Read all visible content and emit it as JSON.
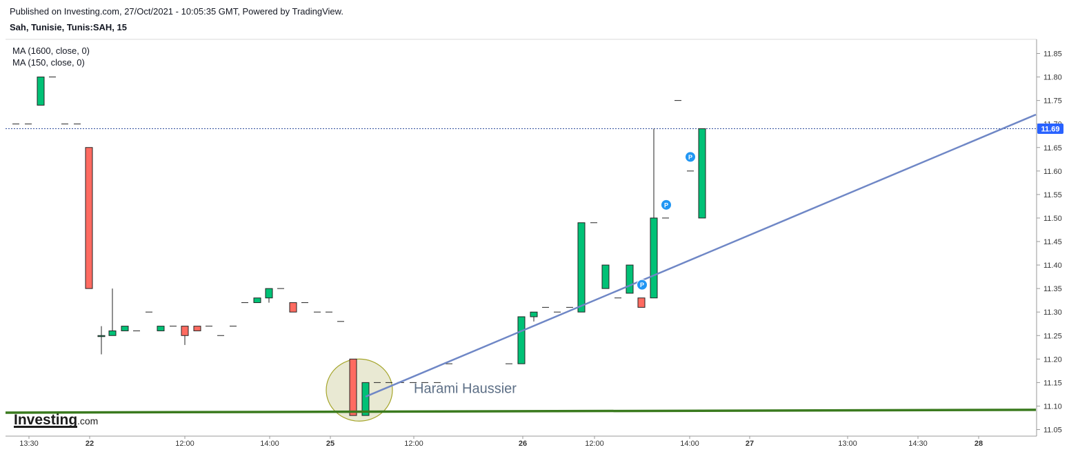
{
  "header": {
    "published": "Published on Investing.com, 27/Oct/2021 - 10:05:35 GMT, Powered by TradingView.",
    "symbol": "Sah, Tunisie, Tunis:SAH, 15"
  },
  "legend": [
    "MA (1600, close, 0)",
    "MA (150, close, 0)"
  ],
  "logo": {
    "name": "Investing",
    "suffix": ".com"
  },
  "colors": {
    "up": "#00c176",
    "down": "#ff6b61",
    "trendline": "#6f87c6",
    "support_line": "#3a7a1e",
    "last_price_line": "#2a4b9b",
    "price_tag": "#2962ff",
    "circle_fill": "#e9e9d3",
    "circle_stroke": "#a5a52a",
    "marker": "#2196f3"
  },
  "chart_data": {
    "type": "candlestick",
    "price_axis": {
      "min": 11.05,
      "max": 11.85,
      "ticks": [
        "11.05",
        "11.10",
        "11.15",
        "11.20",
        "11.25",
        "11.30",
        "11.35",
        "11.40",
        "11.45",
        "11.50",
        "11.55",
        "11.60",
        "11.65",
        "11.70",
        "11.75",
        "11.80",
        "11.85"
      ]
    },
    "time_axis_labels": [
      "13:30",
      "22",
      "12:00",
      "14:00",
      "25",
      "12:00",
      "26",
      "12:00",
      "14:00",
      "27",
      "13:00",
      "14:30",
      "28"
    ],
    "time_axis_bold": [
      false,
      true,
      false,
      false,
      true,
      false,
      true,
      false,
      false,
      true,
      false,
      false,
      true
    ],
    "last_price": "11.69",
    "candles": [
      {
        "o": 11.7,
        "h": 11.7,
        "l": 11.7,
        "c": 11.7
      },
      {
        "o": 11.7,
        "h": 11.7,
        "l": 11.7,
        "c": 11.7
      },
      {
        "o": 11.74,
        "h": 11.8,
        "l": 11.74,
        "c": 11.8
      },
      {
        "o": 11.8,
        "h": 11.8,
        "l": 11.8,
        "c": 11.8
      },
      {
        "o": 11.7,
        "h": 11.7,
        "l": 11.7,
        "c": 11.7
      },
      {
        "o": 11.7,
        "h": 11.7,
        "l": 11.7,
        "c": 11.7
      },
      {
        "o": 11.65,
        "h": 11.65,
        "l": 11.35,
        "c": 11.35
      },
      {
        "o": 11.25,
        "h": 11.27,
        "l": 11.21,
        "c": 11.25
      },
      {
        "o": 11.25,
        "h": 11.35,
        "l": 11.25,
        "c": 11.26
      },
      {
        "o": 11.26,
        "h": 11.27,
        "l": 11.26,
        "c": 11.27
      },
      {
        "o": 11.26,
        "h": 11.26,
        "l": 11.26,
        "c": 11.26
      },
      {
        "o": 11.3,
        "h": 11.3,
        "l": 11.3,
        "c": 11.3
      },
      {
        "o": 11.26,
        "h": 11.27,
        "l": 11.26,
        "c": 11.27
      },
      {
        "o": 11.27,
        "h": 11.27,
        "l": 11.27,
        "c": 11.27
      },
      {
        "o": 11.27,
        "h": 11.27,
        "l": 11.23,
        "c": 11.25
      },
      {
        "o": 11.27,
        "h": 11.27,
        "l": 11.26,
        "c": 11.26
      },
      {
        "o": 11.27,
        "h": 11.27,
        "l": 11.27,
        "c": 11.27
      },
      {
        "o": 11.25,
        "h": 11.25,
        "l": 11.25,
        "c": 11.25
      },
      {
        "o": 11.27,
        "h": 11.27,
        "l": 11.27,
        "c": 11.27
      },
      {
        "o": 11.32,
        "h": 11.32,
        "l": 11.32,
        "c": 11.32
      },
      {
        "o": 11.32,
        "h": 11.33,
        "l": 11.32,
        "c": 11.33
      },
      {
        "o": 11.33,
        "h": 11.35,
        "l": 11.32,
        "c": 11.35
      },
      {
        "o": 11.35,
        "h": 11.35,
        "l": 11.35,
        "c": 11.35
      },
      {
        "o": 11.32,
        "h": 11.32,
        "l": 11.3,
        "c": 11.3
      },
      {
        "o": 11.32,
        "h": 11.32,
        "l": 11.32,
        "c": 11.32
      },
      {
        "o": 11.3,
        "h": 11.3,
        "l": 11.3,
        "c": 11.3
      },
      {
        "o": 11.3,
        "h": 11.3,
        "l": 11.3,
        "c": 11.3
      },
      {
        "o": 11.28,
        "h": 11.28,
        "l": 11.28,
        "c": 11.28
      },
      {
        "o": 11.2,
        "h": 11.2,
        "l": 11.08,
        "c": 11.08
      },
      {
        "o": 11.08,
        "h": 11.15,
        "l": 11.08,
        "c": 11.15
      },
      {
        "o": 11.15,
        "h": 11.15,
        "l": 11.15,
        "c": 11.15
      },
      {
        "o": 11.15,
        "h": 11.15,
        "l": 11.15,
        "c": 11.15
      },
      {
        "o": 11.15,
        "h": 11.15,
        "l": 11.15,
        "c": 11.15
      },
      {
        "o": 11.15,
        "h": 11.15,
        "l": 11.15,
        "c": 11.15
      },
      {
        "o": 11.15,
        "h": 11.15,
        "l": 11.15,
        "c": 11.15
      },
      {
        "o": 11.15,
        "h": 11.15,
        "l": 11.15,
        "c": 11.15
      },
      {
        "o": 11.19,
        "h": 11.19,
        "l": 11.19,
        "c": 11.19
      },
      {
        "o": 11.19,
        "h": 11.19,
        "l": 11.19,
        "c": 11.19
      },
      {
        "o": 11.19,
        "h": 11.29,
        "l": 11.19,
        "c": 11.29
      },
      {
        "o": 11.29,
        "h": 11.3,
        "l": 11.28,
        "c": 11.3
      },
      {
        "o": 11.31,
        "h": 11.31,
        "l": 11.31,
        "c": 11.31
      },
      {
        "o": 11.3,
        "h": 11.3,
        "l": 11.3,
        "c": 11.3
      },
      {
        "o": 11.31,
        "h": 11.31,
        "l": 11.31,
        "c": 11.31
      },
      {
        "o": 11.3,
        "h": 11.49,
        "l": 11.3,
        "c": 11.49
      },
      {
        "o": 11.49,
        "h": 11.49,
        "l": 11.49,
        "c": 11.49
      },
      {
        "o": 11.35,
        "h": 11.4,
        "l": 11.35,
        "c": 11.4
      },
      {
        "o": 11.33,
        "h": 11.33,
        "l": 11.33,
        "c": 11.33
      },
      {
        "o": 11.34,
        "h": 11.4,
        "l": 11.34,
        "c": 11.4
      },
      {
        "o": 11.33,
        "h": 11.33,
        "l": 11.31,
        "c": 11.31
      },
      {
        "o": 11.33,
        "h": 11.69,
        "l": 11.33,
        "c": 11.5
      },
      {
        "o": 11.5,
        "h": 11.5,
        "l": 11.5,
        "c": 11.5
      },
      {
        "o": 11.75,
        "h": 11.75,
        "l": 11.75,
        "c": 11.75
      },
      {
        "o": 11.6,
        "h": 11.6,
        "l": 11.6,
        "c": 11.6
      },
      {
        "o": 11.5,
        "h": 11.69,
        "l": 11.5,
        "c": 11.69
      }
    ],
    "candle_x": [
      23,
      41,
      59,
      76,
      94,
      112,
      129,
      147,
      163,
      181,
      198,
      216,
      233,
      251,
      268,
      286,
      303,
      320,
      338,
      355,
      373,
      390,
      407,
      425,
      442,
      460,
      477,
      494,
      512,
      530,
      547,
      564,
      581,
      599,
      616,
      634,
      651,
      738,
      756,
      774,
      791,
      808,
      826,
      843,
      861,
      878,
      896,
      913,
      930,
      948,
      965,
      983,
      1001,
      1018
    ],
    "markers": [
      {
        "label": "P",
        "price": 11.63,
        "x": 1001
      },
      {
        "label": "P",
        "price": 11.528,
        "x": 966
      },
      {
        "label": "P",
        "price": 11.358,
        "x": 931
      }
    ],
    "drawings": {
      "trendline": {
        "from": {
          "x": 530,
          "price": 11.12
        },
        "to": {
          "x": 1502,
          "price": 11.72
        }
      },
      "support_line": {
        "from": {
          "x": 8,
          "price": 11.086
        },
        "to": {
          "x": 1502,
          "price": 11.092
        }
      },
      "highlight": {
        "cx": 521,
        "cy_price": 11.134,
        "rx": 48,
        "ry": 45
      },
      "annotation": {
        "text": "Harami Haussier",
        "x": 600,
        "price": 11.128
      }
    }
  }
}
